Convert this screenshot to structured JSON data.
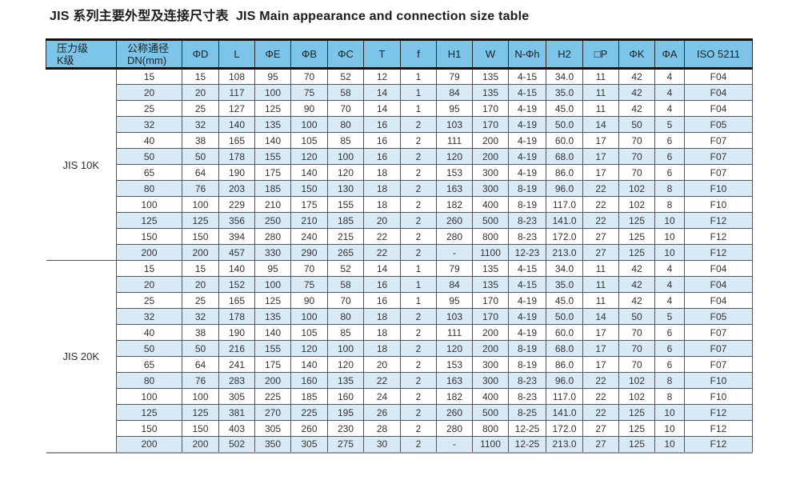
{
  "title": "JIS 系列主要外型及连接尺寸表  JIS Main appearance and connection size table",
  "colors": {
    "header_bg": "#7cc4e8",
    "stripe_bg": "#d9eaf7",
    "heavy_line": "#111111"
  },
  "table": {
    "columns": [
      {
        "lines": [
          "压力级",
          "K级"
        ]
      },
      {
        "lines": [
          "公称通径",
          "DN(mm)"
        ]
      },
      {
        "lines": [
          "ΦD"
        ]
      },
      {
        "lines": [
          "L"
        ]
      },
      {
        "lines": [
          "ΦE"
        ]
      },
      {
        "lines": [
          "ΦB"
        ]
      },
      {
        "lines": [
          "ΦC"
        ]
      },
      {
        "lines": [
          "T"
        ]
      },
      {
        "lines": [
          "f"
        ]
      },
      {
        "lines": [
          "H1"
        ]
      },
      {
        "lines": [
          "W"
        ]
      },
      {
        "lines": [
          "N-Φh"
        ]
      },
      {
        "lines": [
          "H2"
        ]
      },
      {
        "lines": [
          "□P"
        ]
      },
      {
        "lines": [
          "ΦK"
        ]
      },
      {
        "lines": [
          "ΦA"
        ]
      },
      {
        "lines": [
          "ISO 5211"
        ]
      }
    ],
    "sections": [
      {
        "label": "JIS 10K",
        "rows": [
          [
            "15",
            "15",
            "108",
            "95",
            "70",
            "52",
            "12",
            "1",
            "79",
            "135",
            "4-15",
            "34.0",
            "11",
            "42",
            "4",
            "F04"
          ],
          [
            "20",
            "20",
            "117",
            "100",
            "75",
            "58",
            "14",
            "1",
            "84",
            "135",
            "4-15",
            "35.0",
            "11",
            "42",
            "4",
            "F04"
          ],
          [
            "25",
            "25",
            "127",
            "125",
            "90",
            "70",
            "14",
            "1",
            "95",
            "170",
            "4-19",
            "45.0",
            "11",
            "42",
            "4",
            "F04"
          ],
          [
            "32",
            "32",
            "140",
            "135",
            "100",
            "80",
            "16",
            "2",
            "103",
            "170",
            "4-19",
            "50.0",
            "14",
            "50",
            "5",
            "F05"
          ],
          [
            "40",
            "38",
            "165",
            "140",
            "105",
            "85",
            "16",
            "2",
            "111",
            "200",
            "4-19",
            "60.0",
            "17",
            "70",
            "6",
            "F07"
          ],
          [
            "50",
            "50",
            "178",
            "155",
            "120",
            "100",
            "16",
            "2",
            "120",
            "200",
            "4-19",
            "68.0",
            "17",
            "70",
            "6",
            "F07"
          ],
          [
            "65",
            "64",
            "190",
            "175",
            "140",
            "120",
            "18",
            "2",
            "153",
            "300",
            "4-19",
            "86.0",
            "17",
            "70",
            "6",
            "F07"
          ],
          [
            "80",
            "76",
            "203",
            "185",
            "150",
            "130",
            "18",
            "2",
            "163",
            "300",
            "8-19",
            "96.0",
            "22",
            "102",
            "8",
            "F10"
          ],
          [
            "100",
            "100",
            "229",
            "210",
            "175",
            "155",
            "18",
            "2",
            "182",
            "400",
            "8-19",
            "117.0",
            "22",
            "102",
            "8",
            "F10"
          ],
          [
            "125",
            "125",
            "356",
            "250",
            "210",
            "185",
            "20",
            "2",
            "260",
            "500",
            "8-23",
            "141.0",
            "22",
            "125",
            "10",
            "F12"
          ],
          [
            "150",
            "150",
            "394",
            "280",
            "240",
            "215",
            "22",
            "2",
            "280",
            "800",
            "8-23",
            "172.0",
            "27",
            "125",
            "10",
            "F12"
          ],
          [
            "200",
            "200",
            "457",
            "330",
            "290",
            "265",
            "22",
            "2",
            "-",
            "1100",
            "12-23",
            "213.0",
            "27",
            "125",
            "10",
            "F12"
          ]
        ]
      },
      {
        "label": "JIS 20K",
        "rows": [
          [
            "15",
            "15",
            "140",
            "95",
            "70",
            "52",
            "14",
            "1",
            "79",
            "135",
            "4-15",
            "34.0",
            "11",
            "42",
            "4",
            "F04"
          ],
          [
            "20",
            "20",
            "152",
            "100",
            "75",
            "58",
            "16",
            "1",
            "84",
            "135",
            "4-15",
            "35.0",
            "11",
            "42",
            "4",
            "F04"
          ],
          [
            "25",
            "25",
            "165",
            "125",
            "90",
            "70",
            "16",
            "1",
            "95",
            "170",
            "4-19",
            "45.0",
            "11",
            "42",
            "4",
            "F04"
          ],
          [
            "32",
            "32",
            "178",
            "135",
            "100",
            "80",
            "18",
            "2",
            "103",
            "170",
            "4-19",
            "50.0",
            "14",
            "50",
            "5",
            "F05"
          ],
          [
            "40",
            "38",
            "190",
            "140",
            "105",
            "85",
            "18",
            "2",
            "111",
            "200",
            "4-19",
            "60.0",
            "17",
            "70",
            "6",
            "F07"
          ],
          [
            "50",
            "50",
            "216",
            "155",
            "120",
            "100",
            "18",
            "2",
            "120",
            "200",
            "8-19",
            "68.0",
            "17",
            "70",
            "6",
            "F07"
          ],
          [
            "65",
            "64",
            "241",
            "175",
            "140",
            "120",
            "20",
            "2",
            "153",
            "300",
            "8-19",
            "86.0",
            "17",
            "70",
            "6",
            "F07"
          ],
          [
            "80",
            "76",
            "283",
            "200",
            "160",
            "135",
            "22",
            "2",
            "163",
            "300",
            "8-23",
            "96.0",
            "22",
            "102",
            "8",
            "F10"
          ],
          [
            "100",
            "100",
            "305",
            "225",
            "185",
            "160",
            "24",
            "2",
            "182",
            "400",
            "8-23",
            "117.0",
            "22",
            "102",
            "8",
            "F10"
          ],
          [
            "125",
            "125",
            "381",
            "270",
            "225",
            "195",
            "26",
            "2",
            "260",
            "500",
            "8-25",
            "141.0",
            "22",
            "125",
            "10",
            "F12"
          ],
          [
            "150",
            "150",
            "403",
            "305",
            "260",
            "230",
            "28",
            "2",
            "280",
            "800",
            "12-25",
            "172.0",
            "27",
            "125",
            "10",
            "F12"
          ],
          [
            "200",
            "200",
            "502",
            "350",
            "305",
            "275",
            "30",
            "2",
            "-",
            "1100",
            "12-25",
            "213.0",
            "27",
            "125",
            "10",
            "F12"
          ]
        ]
      }
    ]
  }
}
